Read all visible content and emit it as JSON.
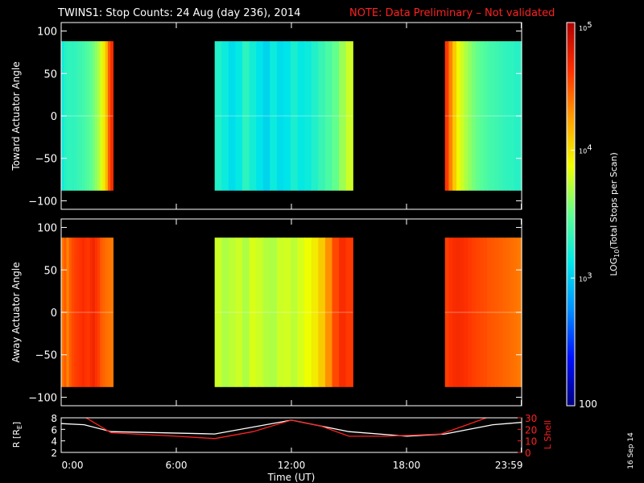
{
  "header": {
    "title": "TWINS1: Stop Counts: 24 Aug (day 236), 2014",
    "note": "NOTE: Data Preliminary – Not validated",
    "note_color": "#ff2020"
  },
  "footer": {
    "date_stamp": "16 Sep 14"
  },
  "colorbar": {
    "label_main": "LOG",
    "label_sub": "10",
    "label_rest": "(Total Stops per Scan)",
    "tick_labels": [
      {
        "base": "10",
        "exp": "5",
        "value": 100000
      },
      {
        "base": "10",
        "exp": "4",
        "value": 10000
      },
      {
        "base": "10",
        "exp": "3",
        "value": 1000
      },
      {
        "base": "100",
        "exp": "",
        "value": 100
      }
    ],
    "scale": "log",
    "range": [
      100,
      100000
    ],
    "colormap": [
      "#000080",
      "#0010ff",
      "#0090ff",
      "#00e8e8",
      "#60ff90",
      "#f0ff00",
      "#ffa000",
      "#ff3000",
      "#b00000"
    ]
  },
  "chart_data": [
    {
      "type": "heatmap",
      "ylabel": "Toward Actuator Angle",
      "ylim": [
        -110,
        110
      ],
      "yticks": [
        "100",
        "50",
        "0",
        "−50",
        "−100"
      ],
      "ytick_values": [
        100,
        50,
        0,
        -50,
        -100
      ],
      "angle_range": [
        -88,
        88
      ],
      "x_unit": "hours UT",
      "segments": [
        {
          "start": 0.0,
          "end": 2.7,
          "profile": [
            1500,
            1900,
            2000,
            2100,
            2000,
            2100,
            2200,
            2300,
            2400,
            2600,
            2800,
            3100,
            3500,
            4200,
            5000,
            6500,
            9000,
            14000,
            30000,
            45000
          ]
        },
        {
          "start": 8.0,
          "end": 15.2,
          "profile": [
            1800,
            1500,
            1200,
            1400,
            2000,
            1600,
            1300,
            1100,
            1500,
            1200,
            1300,
            1700,
            1400,
            1500,
            1800,
            2200,
            2600,
            3200,
            4500,
            6000
          ]
        },
        {
          "start": 20.0,
          "end": 24.0,
          "profile": [
            40000,
            22000,
            12000,
            8000,
            6000,
            5000,
            4200,
            3600,
            3200,
            2900,
            2700,
            2500,
            2400,
            2300,
            2200,
            2100,
            2000,
            2000,
            1900,
            1900
          ]
        }
      ]
    },
    {
      "type": "heatmap",
      "ylabel": "Away Actuator Angle",
      "ylim": [
        -110,
        110
      ],
      "yticks": [
        "100",
        "50",
        "0",
        "−50",
        "−100"
      ],
      "ytick_values": [
        100,
        50,
        0,
        -50,
        -100
      ],
      "angle_range": [
        -88,
        88
      ],
      "x_unit": "hours UT",
      "segments": [
        {
          "start": 0.0,
          "end": 2.7,
          "profile": [
            25000,
            30000,
            22000,
            30000,
            35000,
            38000,
            40000,
            42000,
            45000,
            42000,
            40000,
            45000,
            50000,
            42000,
            38000,
            30000,
            28000,
            26000,
            25000,
            24000
          ]
        },
        {
          "start": 8.0,
          "end": 15.2,
          "profile": [
            6000,
            5000,
            5500,
            6000,
            5000,
            6500,
            6000,
            5200,
            5000,
            6000,
            6200,
            5500,
            6500,
            7500,
            9000,
            12000,
            20000,
            35000,
            45000,
            40000
          ]
        },
        {
          "start": 20.0,
          "end": 24.0,
          "profile": [
            38000,
            42000,
            45000,
            46000,
            45000,
            43000,
            40000,
            38000,
            36000,
            35000,
            34000,
            32000,
            31000,
            30000,
            29000,
            28000,
            27000,
            26000,
            25000,
            24000
          ]
        }
      ]
    },
    {
      "type": "line",
      "ylabel": "R [R",
      "ylabel_sub": "E",
      "ylabel_right": "L Shell",
      "ylim": [
        2,
        8
      ],
      "ylim_right": [
        0,
        30
      ],
      "yticks_left": [
        "8",
        "6",
        "4",
        "2"
      ],
      "ytick_left_values": [
        8,
        6,
        4,
        2
      ],
      "yticks_right": [
        "30",
        "20",
        "10",
        "0"
      ],
      "ytick_right_values": [
        30,
        20,
        10,
        0
      ],
      "xlabel": "Time (UT)",
      "xlim": [
        0,
        24
      ],
      "xticks": [
        "0:00",
        "6:00",
        "12:00",
        "18:00",
        "23:59"
      ],
      "xtick_values": [
        0,
        6,
        12,
        18,
        23.98
      ],
      "series": [
        {
          "color": "#ffffff",
          "axis": "left",
          "x": [
            0,
            1.2,
            2.6,
            8.0,
            12.0,
            15.0,
            18.0,
            20.0,
            22.5,
            24.0
          ],
          "y": [
            7.0,
            6.8,
            5.6,
            5.2,
            7.6,
            5.6,
            4.8,
            5.2,
            6.8,
            7.2
          ]
        },
        {
          "color": "#ff2020",
          "axis": "right",
          "x": [
            1.2,
            2.6,
            6.0,
            8.0,
            10.0,
            12.0,
            13.5,
            15.0,
            17.0,
            19.8,
            21.0,
            22.5
          ],
          "y": [
            31,
            17,
            14,
            12,
            18,
            28,
            23,
            14,
            14,
            16,
            23,
            32
          ]
        }
      ]
    }
  ]
}
